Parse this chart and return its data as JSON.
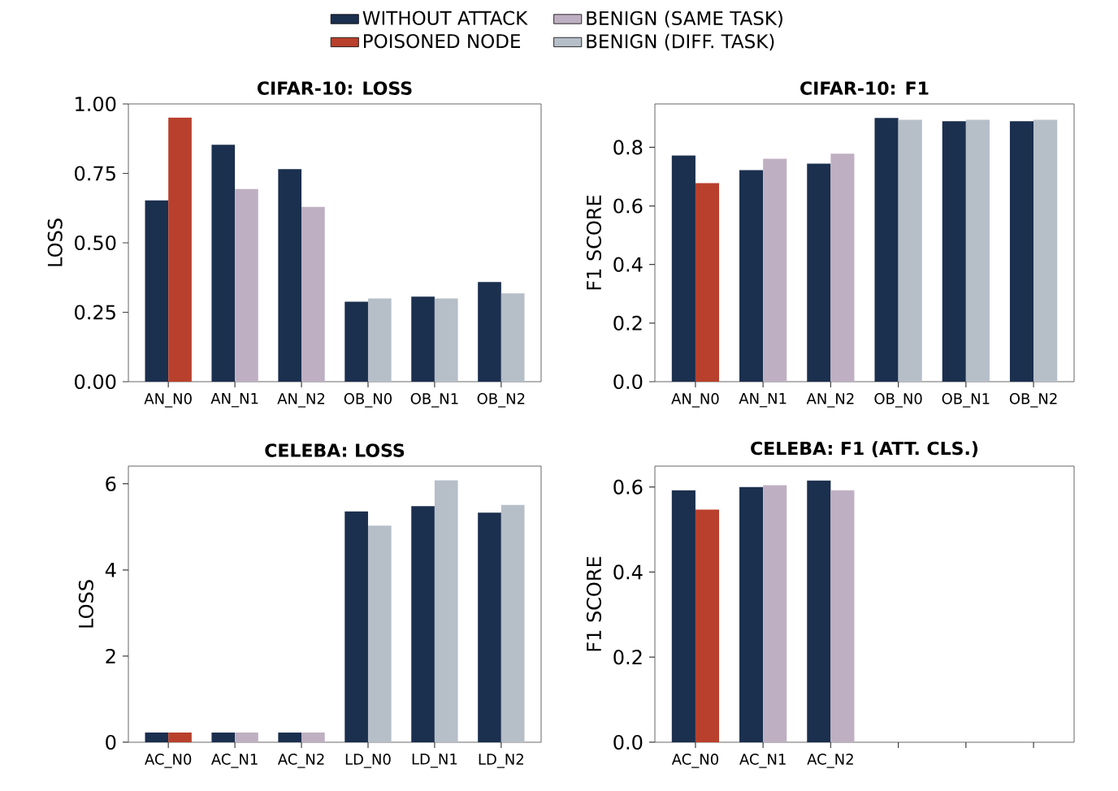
{
  "chart_data": [
    {
      "type": "bar",
      "title": "CIFAR-10: LOSS",
      "ylabel": "LOSS",
      "legend": "top",
      "categories": [
        "AN_N0",
        "AN_N1",
        "AN_N2",
        "OB_N0",
        "OB_N1",
        "OB_N2"
      ],
      "series": [
        {
          "name": "WITHOUT ATTACK",
          "color": "#1b2f4e",
          "values": [
            0.653,
            0.853,
            0.765,
            0.288,
            0.306,
            0.359
          ]
        },
        {
          "name": "POISONED NODE",
          "color": "#b9402c",
          "values": [
            0.951,
            null,
            null,
            null,
            null,
            null
          ]
        },
        {
          "name": "BENIGN (SAME TASK)",
          "color": "#bfafc2",
          "values": [
            null,
            0.694,
            0.629,
            null,
            null,
            null
          ]
        },
        {
          "name": "BENIGN (DIFF. TASK)",
          "color": "#b6bec8",
          "values": [
            null,
            null,
            null,
            0.3,
            0.3,
            0.318
          ]
        }
      ],
      "ylim": [
        0,
        1.0
      ],
      "yticks": [
        {
          "value": 0,
          "label": "0.00"
        },
        {
          "value": 0.25,
          "label": "0.25"
        },
        {
          "value": 0.5,
          "label": "0.50"
        },
        {
          "value": 0.75,
          "label": "0.75"
        },
        {
          "value": 1,
          "label": "1.00"
        }
      ]
    },
    {
      "type": "bar",
      "title": "CIFAR-10: F1",
      "ylabel": "F1 SCORE",
      "categories": [
        "AN_N0",
        "AN_N1",
        "AN_N2",
        "OB_N0",
        "OB_N1",
        "OB_N2"
      ],
      "series": [
        {
          "color": "#1b2f4e",
          "values": [
            0.772,
            0.722,
            0.744,
            0.9,
            0.889,
            0.889
          ]
        },
        {
          "color": "#b9402c",
          "values": [
            0.678,
            null,
            null,
            null,
            null,
            null
          ]
        },
        {
          "color": "#bfafc2",
          "values": [
            null,
            0.761,
            0.778,
            null,
            null,
            null
          ]
        },
        {
          "color": "#b6bec8",
          "values": [
            null,
            null,
            null,
            0.894,
            0.894,
            0.894
          ]
        }
      ],
      "ylim": [
        0,
        0.948
      ],
      "yticks": [
        {
          "value": 0,
          "label": "0.0"
        },
        {
          "value": 0.2,
          "label": "0.2"
        },
        {
          "value": 0.4,
          "label": "0.4"
        },
        {
          "value": 0.6,
          "label": "0.6"
        },
        {
          "value": 0.8,
          "label": "0.8"
        }
      ]
    },
    {
      "type": "bar",
      "title": "CELEBA: LOSS",
      "ylabel": "LOSS",
      "categories": [
        "AC_N0",
        "AC_N1",
        "AC_N2",
        "LD_N0",
        "LD_N1",
        "LD_N2"
      ],
      "series": [
        {
          "color": "#1b2f4e",
          "values": [
            0.225,
            0.225,
            0.225,
            5.36,
            5.48,
            5.33
          ]
        },
        {
          "color": "#b9402c",
          "values": [
            0.225,
            null,
            null,
            null,
            null,
            null
          ]
        },
        {
          "color": "#bfafc2",
          "values": [
            null,
            0.225,
            0.225,
            null,
            null,
            null
          ]
        },
        {
          "color": "#b6bec8",
          "values": [
            null,
            null,
            null,
            5.03,
            6.08,
            5.51
          ]
        }
      ],
      "ylim": [
        0,
        6.41
      ],
      "yticks": [
        0,
        2,
        4,
        6
      ]
    },
    {
      "type": "bar",
      "title": "CELEBA: F1 (ATT. CLS.)",
      "ylabel": "F1 SCORE",
      "categories": [
        "AC_N0",
        "AC_N1",
        "AC_N2",
        null,
        null,
        null
      ],
      "series": [
        {
          "color": "#1b2f4e",
          "values": [
            0.592,
            0.6,
            0.615,
            null,
            null,
            null
          ]
        },
        {
          "color": "#b9402c",
          "values": [
            0.547,
            null,
            null,
            null,
            null,
            null
          ]
        },
        {
          "color": "#bfafc2",
          "values": [
            null,
            0.604,
            0.592,
            null,
            null,
            null
          ]
        },
        {
          "color": "#b6bec8",
          "values": [
            null,
            null,
            null,
            null,
            null,
            null
          ]
        }
      ],
      "ylim": [
        0,
        0.649
      ],
      "yticks": [
        {
          "value": 0,
          "label": "0.0"
        },
        {
          "value": 0.2,
          "label": "0.2"
        },
        {
          "value": 0.4,
          "label": "0.4"
        },
        {
          "value": 0.6,
          "label": "0.6"
        }
      ]
    }
  ]
}
